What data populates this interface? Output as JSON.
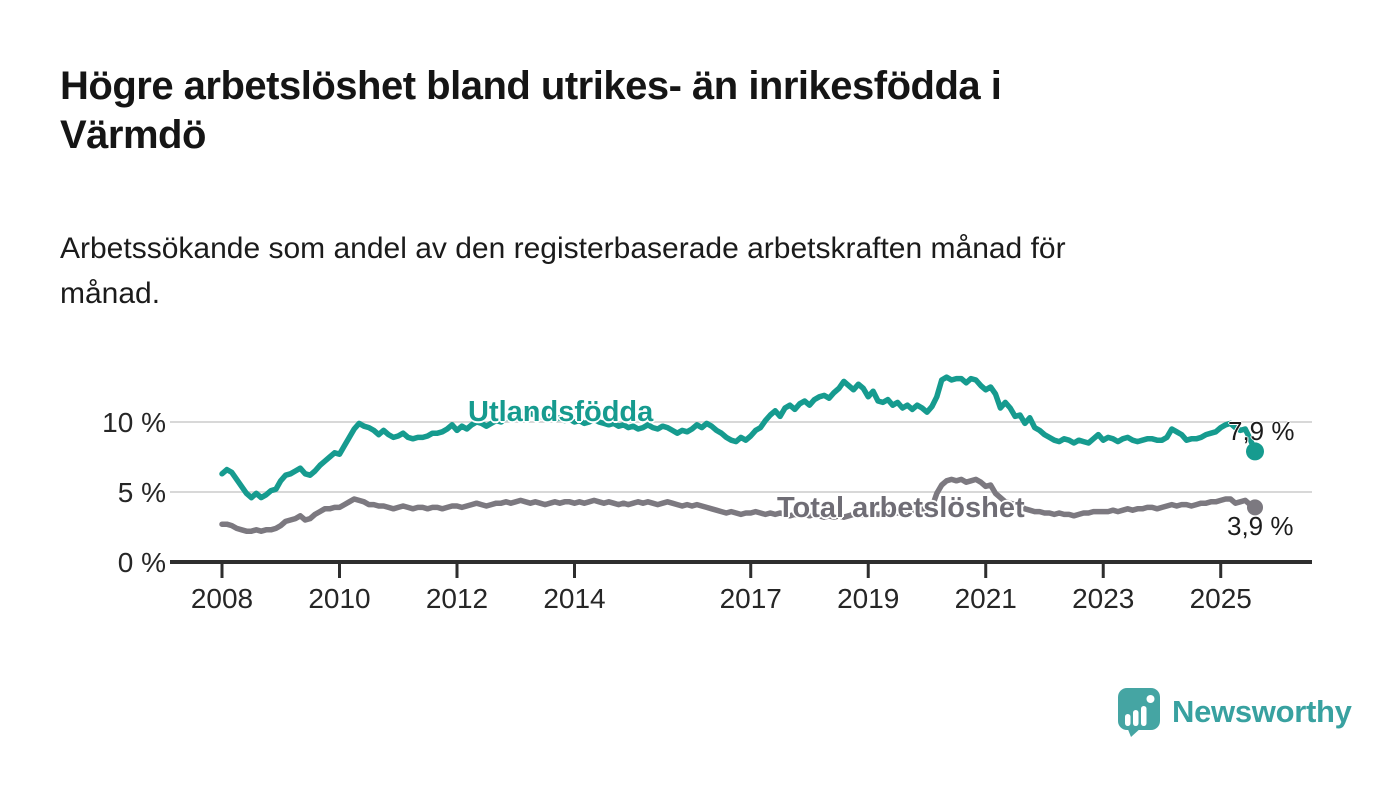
{
  "header": {
    "title": "Högre arbetslöshet bland utrikes- än inrikesfödda i\nVärmdö",
    "subtitle": "Arbetssökande som andel av den registerbaserade arbetskraften månad för\nmånad."
  },
  "footer": {
    "brand": "Newsworthy"
  },
  "colors": {
    "background": "#ffffff",
    "axis": "#2e2e2e",
    "gridline": "#d8d8d8",
    "tick_text": "#262626",
    "teal": "#169b8f",
    "gray_line": "#7c7980",
    "gray_label": "#6f6d75",
    "logo_teal": "#38a1a0",
    "end_label_text": "#1c1c1c"
  },
  "chart_data": {
    "type": "line",
    "unit": "%",
    "x_start": "2008-01",
    "x_end": "2025-08",
    "frequency": "monthly",
    "x_tick_labels": [
      "2008",
      "2010",
      "2012",
      "2014",
      "2017",
      "2019",
      "2021",
      "2023",
      "2025"
    ],
    "y_ticks": [
      {
        "value": 0,
        "label": "0 %"
      },
      {
        "value": 5,
        "label": "5 %"
      },
      {
        "value": 10,
        "label": "10 %"
      }
    ],
    "grid_values": [
      5,
      10
    ],
    "ylim": [
      0,
      13.6
    ],
    "legend_position": "inline-labels",
    "series": [
      {
        "name": "Utlandsfödda",
        "color": "#169b8f",
        "end_label": "7,9 %",
        "last_value": 7.9,
        "values": [
          6.3,
          6.6,
          6.4,
          5.9,
          5.4,
          4.9,
          4.6,
          4.9,
          4.6,
          4.8,
          5.1,
          5.2,
          5.8,
          6.2,
          6.3,
          6.5,
          6.7,
          6.3,
          6.2,
          6.5,
          6.9,
          7.2,
          7.5,
          7.8,
          7.7,
          8.3,
          8.9,
          9.5,
          9.9,
          9.7,
          9.6,
          9.4,
          9.1,
          9.4,
          9.1,
          8.9,
          9.0,
          9.2,
          8.9,
          8.8,
          8.9,
          8.9,
          9.0,
          9.2,
          9.2,
          9.3,
          9.5,
          9.8,
          9.4,
          9.7,
          9.5,
          9.8,
          10.0,
          9.9,
          9.7,
          9.9,
          10.1,
          10.0,
          10.3,
          10.2,
          10.3,
          10.5,
          10.8,
          10.6,
          10.5,
          10.4,
          10.3,
          10.4,
          10.2,
          10.3,
          10.1,
          10.2,
          10.0,
          10.1,
          9.9,
          10.0,
          10.2,
          10.0,
          9.9,
          9.8,
          9.9,
          9.7,
          9.8,
          9.6,
          9.7,
          9.5,
          9.6,
          9.8,
          9.6,
          9.5,
          9.7,
          9.6,
          9.4,
          9.2,
          9.4,
          9.3,
          9.5,
          9.8,
          9.6,
          9.9,
          9.7,
          9.4,
          9.2,
          8.9,
          8.7,
          8.6,
          8.9,
          8.7,
          9.0,
          9.4,
          9.6,
          10.1,
          10.5,
          10.8,
          10.4,
          11.0,
          11.2,
          10.9,
          11.3,
          11.5,
          11.2,
          11.6,
          11.8,
          11.9,
          11.7,
          12.1,
          12.4,
          12.9,
          12.6,
          12.3,
          12.7,
          12.4,
          11.8,
          12.2,
          11.5,
          11.4,
          11.6,
          11.2,
          11.4,
          11.0,
          11.2,
          10.9,
          11.2,
          11.0,
          10.7,
          11.1,
          11.8,
          13.0,
          13.2,
          13.0,
          13.1,
          13.1,
          12.8,
          13.1,
          13.0,
          12.6,
          12.3,
          12.5,
          12.0,
          11.0,
          11.4,
          11.0,
          10.4,
          10.5,
          9.9,
          10.3,
          9.6,
          9.4,
          9.1,
          8.9,
          8.7,
          8.6,
          8.8,
          8.7,
          8.5,
          8.7,
          8.6,
          8.5,
          8.8,
          9.1,
          8.7,
          8.9,
          8.8,
          8.6,
          8.8,
          8.9,
          8.7,
          8.6,
          8.7,
          8.8,
          8.8,
          8.7,
          8.7,
          8.9,
          9.5,
          9.3,
          9.1,
          8.7,
          8.8,
          8.8,
          8.9,
          9.1,
          9.2,
          9.3,
          9.6,
          9.8,
          9.9,
          9.6,
          9.4,
          9.5,
          8.8,
          7.9
        ]
      },
      {
        "name": "Total arbetslöshet",
        "color": "#7c7980",
        "end_label": "3,9 %",
        "last_value": 3.9,
        "values": [
          2.7,
          2.7,
          2.6,
          2.4,
          2.3,
          2.2,
          2.2,
          2.3,
          2.2,
          2.3,
          2.3,
          2.4,
          2.6,
          2.9,
          3.0,
          3.1,
          3.3,
          3.0,
          3.1,
          3.4,
          3.6,
          3.8,
          3.8,
          3.9,
          3.9,
          4.1,
          4.3,
          4.5,
          4.4,
          4.3,
          4.1,
          4.1,
          4.0,
          4.0,
          3.9,
          3.8,
          3.9,
          4.0,
          3.9,
          3.8,
          3.9,
          3.9,
          3.8,
          3.9,
          3.9,
          3.8,
          3.9,
          4.0,
          4.0,
          3.9,
          4.0,
          4.1,
          4.2,
          4.1,
          4.0,
          4.1,
          4.2,
          4.2,
          4.3,
          4.2,
          4.3,
          4.4,
          4.3,
          4.2,
          4.3,
          4.2,
          4.1,
          4.2,
          4.3,
          4.2,
          4.3,
          4.3,
          4.2,
          4.3,
          4.2,
          4.3,
          4.4,
          4.3,
          4.2,
          4.3,
          4.2,
          4.1,
          4.2,
          4.1,
          4.2,
          4.3,
          4.2,
          4.3,
          4.2,
          4.1,
          4.2,
          4.3,
          4.2,
          4.1,
          4.0,
          4.1,
          4.0,
          4.1,
          4.0,
          3.9,
          3.8,
          3.7,
          3.6,
          3.5,
          3.6,
          3.5,
          3.4,
          3.5,
          3.5,
          3.6,
          3.5,
          3.4,
          3.5,
          3.4,
          3.5,
          3.4,
          3.3,
          3.4,
          3.3,
          3.4,
          3.3,
          3.4,
          3.3,
          3.2,
          3.3,
          3.2,
          3.3,
          3.2,
          3.3,
          3.4,
          3.3,
          3.4,
          3.4,
          3.5,
          3.4,
          3.5,
          3.5,
          3.6,
          3.5,
          3.6,
          3.6,
          3.7,
          3.7,
          3.8,
          3.8,
          3.9,
          4.9,
          5.5,
          5.8,
          5.9,
          5.8,
          5.9,
          5.7,
          5.8,
          5.9,
          5.7,
          5.4,
          5.5,
          4.9,
          4.6,
          4.3,
          4.2,
          4.1,
          4.0,
          3.8,
          3.7,
          3.6,
          3.6,
          3.5,
          3.5,
          3.4,
          3.5,
          3.4,
          3.4,
          3.3,
          3.4,
          3.5,
          3.5,
          3.6,
          3.6,
          3.6,
          3.6,
          3.7,
          3.6,
          3.7,
          3.8,
          3.7,
          3.8,
          3.8,
          3.9,
          3.9,
          3.8,
          3.9,
          4.0,
          4.1,
          4.0,
          4.1,
          4.1,
          4.0,
          4.1,
          4.2,
          4.2,
          4.3,
          4.3,
          4.4,
          4.5,
          4.5,
          4.2,
          4.3,
          4.4,
          4.1,
          3.9
        ]
      }
    ]
  }
}
